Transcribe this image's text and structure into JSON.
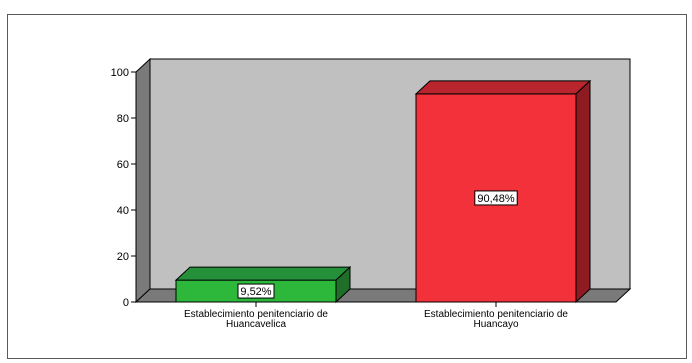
{
  "chart_data": {
    "type": "bar",
    "three_d": true,
    "categories": [
      "Establecimiento penitenciario de Huancavelica",
      "Establecimiento penitenciario de Huancayo"
    ],
    "category_lines": [
      [
        "Establecimiento penitenciario de",
        "Huancavelica"
      ],
      [
        "Establecimiento penitenciario de",
        "Huancayo"
      ]
    ],
    "values": [
      9.52,
      90.48
    ],
    "data_labels": [
      "9,52%",
      "90,48%"
    ],
    "ylim": [
      0,
      100
    ],
    "yticks": [
      0,
      20,
      40,
      60,
      80,
      100
    ],
    "ytick_labels": [
      "0",
      "20",
      "40",
      "60",
      "80",
      "100"
    ],
    "title": "",
    "xlabel": "",
    "ylabel": "",
    "grid": false,
    "legend": false,
    "colors": {
      "bars": [
        "#2db83c",
        "#f2313a"
      ],
      "bar_sides": [
        "#1f6e29",
        "#8e1b21"
      ],
      "bar_tops": [
        "#24913a",
        "#b8252c"
      ],
      "back_wall": "#c0c0c0",
      "side_wall": "#7a7a7a",
      "floor": "#7a7a7a",
      "outline": "#000000"
    }
  }
}
